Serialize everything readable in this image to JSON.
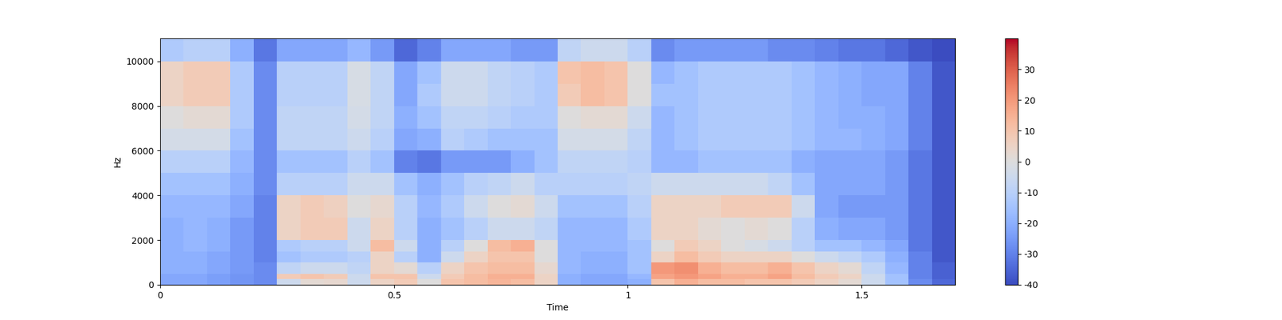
{
  "chart_data": {
    "type": "heatmap",
    "x_label": "Time",
    "y_label": "Hz",
    "x_edges": [
      0,
      0.05,
      0.1,
      0.15,
      0.2,
      0.25,
      0.3,
      0.35,
      0.4,
      0.45,
      0.5,
      0.55,
      0.6,
      0.65,
      0.7,
      0.75,
      0.8,
      0.85,
      0.9,
      0.95,
      1.0,
      1.05,
      1.1,
      1.15,
      1.2,
      1.25,
      1.3,
      1.35,
      1.4,
      1.45,
      1.5,
      1.55,
      1.6,
      1.65,
      1.7
    ],
    "y_edges": [
      0,
      250,
      500,
      1000,
      1500,
      2000,
      3000,
      4000,
      5000,
      6000,
      7000,
      8000,
      9000,
      10000,
      11025
    ],
    "cells": [
      [
        -22,
        -22,
        -24,
        -26,
        -28,
        -5,
        2,
        3,
        -5,
        5,
        8,
        0,
        10,
        12,
        14,
        12,
        5,
        -20,
        -22,
        -22,
        -20,
        10,
        15,
        12,
        12,
        10,
        10,
        8,
        5,
        2,
        -5,
        -15,
        -28,
        -35
      ],
      [
        -22,
        -22,
        -24,
        -26,
        -28,
        8,
        10,
        8,
        -5,
        10,
        10,
        -5,
        8,
        12,
        15,
        15,
        5,
        -20,
        -22,
        -22,
        -18,
        18,
        20,
        18,
        15,
        15,
        18,
        12,
        8,
        5,
        -5,
        -15,
        -30,
        -36
      ],
      [
        -20,
        -20,
        -22,
        -25,
        -28,
        -8,
        -5,
        -5,
        -8,
        5,
        2,
        -10,
        5,
        10,
        12,
        12,
        3,
        -18,
        -20,
        -20,
        -15,
        20,
        22,
        15,
        12,
        12,
        15,
        10,
        5,
        2,
        -8,
        -18,
        -30,
        -36
      ],
      [
        -20,
        -20,
        -22,
        -25,
        -30,
        -15,
        -12,
        -12,
        -10,
        5,
        -10,
        -20,
        -5,
        5,
        10,
        10,
        0,
        -18,
        -20,
        -20,
        -15,
        5,
        12,
        8,
        5,
        5,
        5,
        0,
        -5,
        -8,
        -12,
        -20,
        -30,
        -38
      ],
      [
        -20,
        -18,
        -20,
        -25,
        -30,
        -12,
        -10,
        -10,
        -5,
        12,
        -5,
        -20,
        -10,
        0,
        12,
        15,
        0,
        -18,
        -18,
        -18,
        -15,
        0,
        8,
        5,
        0,
        -2,
        -5,
        -10,
        -15,
        -15,
        -18,
        -22,
        -32,
        -38
      ],
      [
        -20,
        -18,
        -20,
        -25,
        -30,
        5,
        8,
        8,
        -5,
        5,
        -10,
        -20,
        -15,
        -10,
        -5,
        -5,
        -8,
        -18,
        -18,
        -18,
        -12,
        5,
        5,
        2,
        0,
        2,
        0,
        -10,
        -20,
        -22,
        -22,
        -25,
        -32,
        -38
      ],
      [
        -18,
        -18,
        -18,
        -22,
        -30,
        5,
        8,
        6,
        0,
        3,
        -10,
        -18,
        -12,
        -5,
        0,
        2,
        -5,
        -15,
        -15,
        -15,
        -10,
        5,
        5,
        5,
        8,
        8,
        8,
        -5,
        -22,
        -25,
        -25,
        -25,
        -32,
        -38
      ],
      [
        -15,
        -15,
        -15,
        -20,
        -28,
        -10,
        -10,
        -10,
        -5,
        -5,
        -15,
        -20,
        -15,
        -10,
        -8,
        -5,
        -10,
        -10,
        -10,
        -10,
        -8,
        -5,
        -5,
        -5,
        -5,
        -5,
        -8,
        -15,
        -22,
        -22,
        -22,
        -25,
        -32,
        -38
      ],
      [
        -10,
        -10,
        -10,
        -18,
        -28,
        -15,
        -15,
        -15,
        -10,
        -15,
        -30,
        -32,
        -25,
        -25,
        -25,
        -20,
        -15,
        -8,
        -8,
        -8,
        -10,
        -18,
        -18,
        -15,
        -15,
        -15,
        -15,
        -20,
        -22,
        -22,
        -22,
        -25,
        -32,
        -38
      ],
      [
        -3,
        -3,
        -3,
        -15,
        -28,
        -8,
        -8,
        -8,
        -5,
        -10,
        -22,
        -20,
        -10,
        -12,
        -15,
        -15,
        -15,
        -3,
        -3,
        -3,
        -8,
        -18,
        -15,
        -12,
        -12,
        -12,
        -12,
        -15,
        -18,
        -18,
        -20,
        -22,
        -30,
        -38
      ],
      [
        0,
        2,
        2,
        -12,
        -28,
        -8,
        -8,
        -8,
        -3,
        -8,
        -20,
        -15,
        -8,
        -8,
        -10,
        -12,
        -12,
        0,
        2,
        2,
        -5,
        -18,
        -15,
        -12,
        -12,
        -12,
        -12,
        -15,
        -18,
        -20,
        -20,
        -22,
        -30,
        -38
      ],
      [
        5,
        8,
        8,
        -12,
        -28,
        -10,
        -10,
        -10,
        -2,
        -8,
        -22,
        -12,
        -5,
        -5,
        -8,
        -10,
        -12,
        8,
        12,
        10,
        0,
        -15,
        -15,
        -12,
        -12,
        -12,
        -12,
        -15,
        -18,
        -20,
        -22,
        -22,
        -30,
        -38
      ],
      [
        5,
        8,
        8,
        -12,
        -28,
        -10,
        -10,
        -10,
        -2,
        -8,
        -22,
        -15,
        -5,
        -5,
        -8,
        -10,
        -12,
        10,
        12,
        10,
        0,
        -18,
        -15,
        -12,
        -12,
        -12,
        -12,
        -15,
        -18,
        -20,
        -22,
        -22,
        -30,
        -38
      ],
      [
        -12,
        -10,
        -10,
        -20,
        -32,
        -22,
        -22,
        -22,
        -18,
        -25,
        -35,
        -30,
        -22,
        -22,
        -22,
        -25,
        -25,
        -8,
        -5,
        -5,
        -10,
        -28,
        -25,
        -25,
        -25,
        -25,
        -28,
        -28,
        -30,
        -32,
        -32,
        -35,
        -38,
        -40
      ]
    ],
    "xlim": [
      0,
      1.7
    ],
    "xticks": [
      0,
      0.5,
      1,
      1.5
    ],
    "ylim": [
      0,
      11025
    ],
    "yticks": [
      0,
      2000,
      4000,
      6000,
      8000,
      10000
    ],
    "colorbar": {
      "range": [
        -40,
        40
      ],
      "ticks": [
        -40,
        -30,
        -20,
        -10,
        0,
        10,
        20,
        30
      ]
    }
  }
}
